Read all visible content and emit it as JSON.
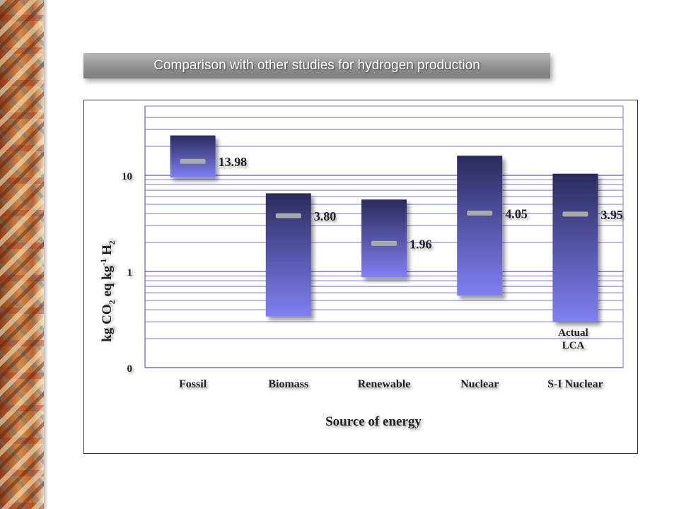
{
  "title": "Comparison with other studies for hydrogen production",
  "colors": {
    "bar_top": "#2b2b5e",
    "bar_bottom": "#8080f2",
    "gridline": "#7474cc",
    "marker": "#a9a9a9",
    "title_bar": "#8f8f8f"
  },
  "chart_data": {
    "type": "bar",
    "subtype": "floating-range",
    "title": "",
    "xlabel": "Source of energy",
    "ylabel": {
      "prefix": "kg CO",
      "sub1": "2",
      "middle": " eq kg",
      "sup": "-1",
      "suffix": " H",
      "sub2": "2"
    },
    "y_scale": "log",
    "y_ticks": [
      {
        "label": "0",
        "value": 0.1
      },
      {
        "label": "1",
        "value": 1
      },
      {
        "label": "10",
        "value": 10
      }
    ],
    "ylim": [
      0.1,
      40
    ],
    "grid": true,
    "categories": [
      "Fossil",
      "Biomass",
      "Renewable",
      "Nuclear",
      "S-I Nuclear"
    ],
    "series": [
      {
        "low": [
          9.5,
          0.34,
          0.87,
          0.56,
          0.3
        ],
        "high": [
          26.0,
          6.5,
          5.6,
          16.0,
          10.4
        ],
        "marker": [
          13.98,
          3.8,
          1.96,
          4.05,
          3.95
        ],
        "value_labels": [
          "13.98",
          "3.80",
          "1.96",
          "4.05",
          "3.95"
        ]
      }
    ],
    "annotations": [
      {
        "category": "S-I Nuclear",
        "lines": [
          "Actual",
          "LCA"
        ]
      }
    ]
  }
}
